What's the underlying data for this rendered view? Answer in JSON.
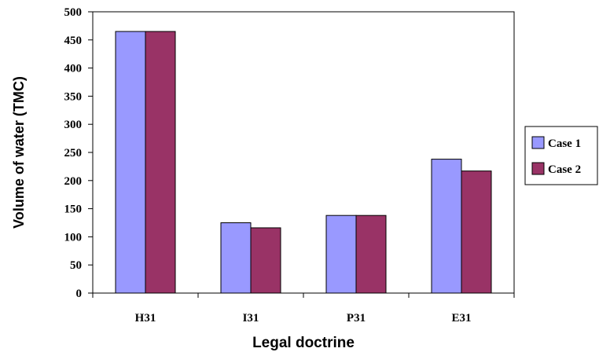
{
  "chart_data": {
    "type": "bar",
    "title": "",
    "xlabel": "Legal doctrine",
    "ylabel": "Volume of water (TMC)",
    "categories": [
      "H31",
      "I31",
      "P31",
      "E31"
    ],
    "series": [
      {
        "name": "Case 1",
        "color": "#9999FF",
        "values": [
          465,
          125,
          138,
          238
        ]
      },
      {
        "name": "Case 2",
        "color": "#993366",
        "values": [
          465,
          116,
          138,
          217
        ]
      }
    ],
    "ylim": [
      0,
      500
    ],
    "yticks": [
      0,
      50,
      100,
      150,
      200,
      250,
      300,
      350,
      400,
      450,
      500
    ],
    "grid": false,
    "legend": "right"
  }
}
